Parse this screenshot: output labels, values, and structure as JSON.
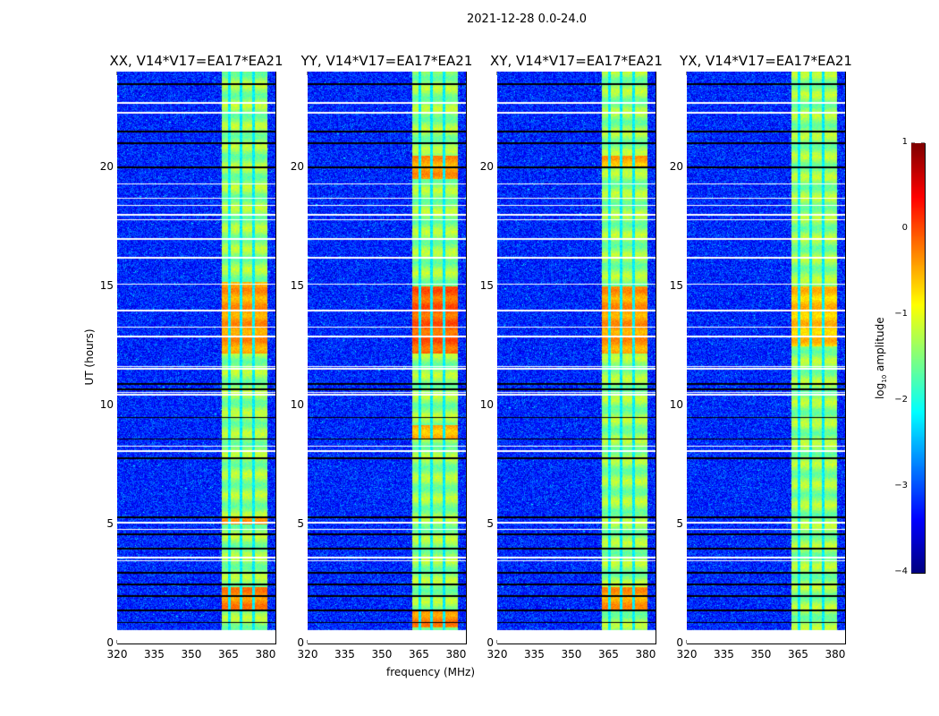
{
  "chart_data": {
    "type": "heatmap",
    "title": "2021-12-28 0.0-24.0",
    "xlabel": "frequency (MHz)",
    "ylabel": "UT (hours)",
    "xlim": [
      320,
      384
    ],
    "ylim": [
      0,
      24
    ],
    "xticks": [
      320,
      335,
      350,
      365,
      380
    ],
    "yticks": [
      0,
      5,
      10,
      15,
      20
    ],
    "colorbar": {
      "label": "log10 amplitude",
      "label_main": "log",
      "label_sub": "10",
      "label_rest": " amplitude",
      "range": [
        -4,
        1
      ],
      "ticks": [
        1,
        0,
        -1,
        -2,
        -3,
        -4
      ],
      "tick_labels": [
        "1",
        "0",
        "−1",
        "−2",
        "−3",
        "−4"
      ],
      "colormap": "jet"
    },
    "background_level": -3.2,
    "band": {
      "range_mhz": [
        362,
        380.5
      ],
      "channel_edges_mhz": [
        365.2,
        370,
        375
      ],
      "level": -1.4
    },
    "data_start_hours": 0.6,
    "flagged_white_hours": [
      3.5,
      3.62,
      4.8,
      5.1,
      8.1,
      8.3,
      10.45,
      10.55,
      11.55,
      11.65,
      14.0,
      15.1,
      16.2,
      17.0,
      17.8,
      18.0,
      18.4,
      18.7,
      19.3,
      22.3,
      22.7,
      12.9,
      13.3
    ],
    "flagged_black_hours": [
      0.9,
      1.4,
      2.0,
      2.5,
      3.0,
      4.0,
      4.6,
      5.3,
      7.8,
      8.6,
      9.5,
      10.7,
      10.9,
      20.0,
      21.0,
      21.5,
      23.5
    ],
    "panels": [
      {
        "title": "XX, V14*V17=EA17*EA21",
        "bright_periods": [
          [
            12.2,
            15.2,
            -0.4
          ],
          [
            1.4,
            2.4,
            -0.3
          ],
          [
            5.0,
            5.3,
            -0.4
          ]
        ]
      },
      {
        "title": "YY, V14*V17=EA17*EA21",
        "bright_periods": [
          [
            12.2,
            15.0,
            -0.1
          ],
          [
            0.7,
            1.4,
            -0.3
          ],
          [
            19.5,
            20.5,
            -0.4
          ],
          [
            8.6,
            9.2,
            -0.5
          ]
        ]
      },
      {
        "title": "XY, V14*V17=EA17*EA21",
        "bright_periods": [
          [
            12.2,
            15.0,
            -0.4
          ],
          [
            1.4,
            2.4,
            -0.4
          ],
          [
            20,
            20.5,
            -0.5
          ]
        ]
      },
      {
        "title": "YX, V14*V17=EA17*EA21",
        "bright_periods": [
          [
            12.5,
            15.0,
            -0.6
          ]
        ]
      }
    ]
  }
}
